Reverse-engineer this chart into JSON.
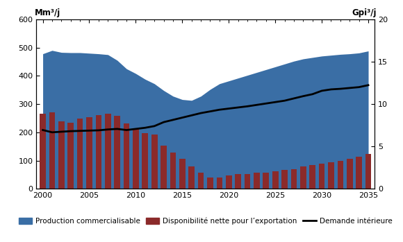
{
  "years": [
    2000,
    2001,
    2002,
    2003,
    2004,
    2005,
    2006,
    2007,
    2008,
    2009,
    2010,
    2011,
    2012,
    2013,
    2014,
    2015,
    2016,
    2017,
    2018,
    2019,
    2020,
    2021,
    2022,
    2023,
    2024,
    2025,
    2026,
    2027,
    2028,
    2029,
    2030,
    2031,
    2032,
    2033,
    2034,
    2035
  ],
  "production": [
    478,
    490,
    483,
    482,
    482,
    480,
    478,
    475,
    455,
    425,
    408,
    388,
    372,
    348,
    328,
    316,
    313,
    328,
    352,
    372,
    382,
    392,
    402,
    412,
    422,
    432,
    442,
    452,
    460,
    465,
    470,
    473,
    476,
    478,
    481,
    488
  ],
  "export_avail": [
    265,
    270,
    240,
    235,
    248,
    253,
    260,
    265,
    258,
    232,
    212,
    198,
    192,
    152,
    128,
    105,
    78,
    56,
    40,
    40,
    46,
    51,
    53,
    56,
    58,
    63,
    66,
    70,
    78,
    85,
    88,
    93,
    98,
    106,
    113,
    123
  ],
  "domestic_demand": [
    208,
    200,
    202,
    204,
    205,
    206,
    207,
    210,
    212,
    208,
    212,
    216,
    222,
    236,
    244,
    252,
    260,
    268,
    274,
    280,
    284,
    288,
    292,
    297,
    302,
    307,
    312,
    320,
    328,
    335,
    347,
    352,
    354,
    357,
    360,
    367
  ],
  "area_color": "#3a6ea5",
  "bar_color": "#8b2a2a",
  "line_color": "#000000",
  "left_ylabel": "Mm³/j",
  "right_ylabel": "Gpi³/j",
  "ylim_left": [
    0,
    600
  ],
  "ylim_right": [
    0,
    20
  ],
  "xticks": [
    2000,
    2005,
    2010,
    2015,
    2020,
    2025,
    2030,
    2035
  ],
  "yticks_left": [
    0,
    100,
    200,
    300,
    400,
    500,
    600
  ],
  "yticks_right": [
    0,
    5,
    10,
    15,
    20
  ],
  "legend_labels": [
    "Production commercialisable",
    "Disponibilité nette pour l’exportation",
    "Demande intérieure"
  ],
  "background_color": "#ffffff"
}
